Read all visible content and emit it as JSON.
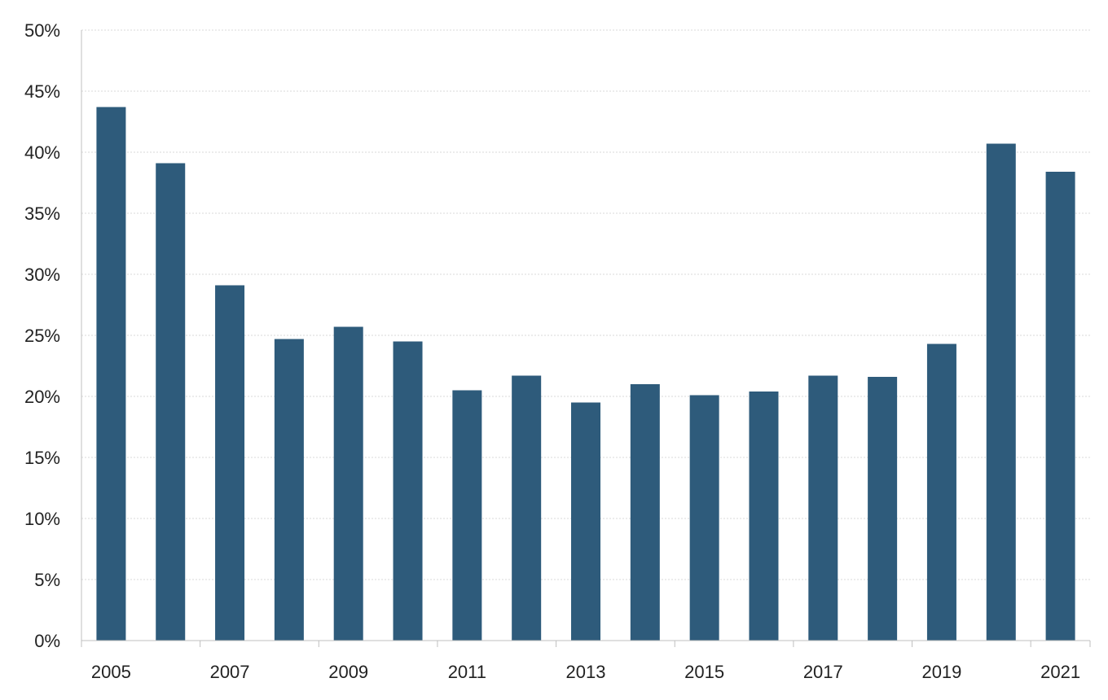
{
  "colors": {
    "bar": "#2e5b7b",
    "grid": "#d9d9d9",
    "axis": "#bfbfbf",
    "text": "#222222"
  },
  "chart_data": {
    "type": "bar",
    "title": "",
    "xlabel": "",
    "ylabel": "",
    "categories": [
      "2005",
      "2006",
      "2007",
      "2008",
      "2009",
      "2010",
      "2011",
      "2012",
      "2013",
      "2014",
      "2015",
      "2016",
      "2017",
      "2018",
      "2019",
      "2020",
      "2021"
    ],
    "x_tick_labels": [
      "2005",
      "",
      "2007",
      "",
      "2009",
      "",
      "2011",
      "",
      "2013",
      "",
      "2015",
      "",
      "2017",
      "",
      "2019",
      "",
      "2021"
    ],
    "values": [
      43.7,
      39.1,
      29.1,
      24.7,
      25.7,
      24.5,
      20.5,
      21.7,
      19.5,
      21.0,
      20.1,
      20.4,
      21.7,
      21.6,
      24.3,
      40.7,
      38.4
    ],
    "value_format": "percent",
    "ylim": [
      0,
      50
    ],
    "y_ticks": [
      0,
      5,
      10,
      15,
      20,
      25,
      30,
      35,
      40,
      45,
      50
    ],
    "y_tick_labels": [
      "0%",
      "5%",
      "10%",
      "15%",
      "20%",
      "25%",
      "30%",
      "35%",
      "40%",
      "45%",
      "50%"
    ],
    "grid": true,
    "legend": "none"
  }
}
